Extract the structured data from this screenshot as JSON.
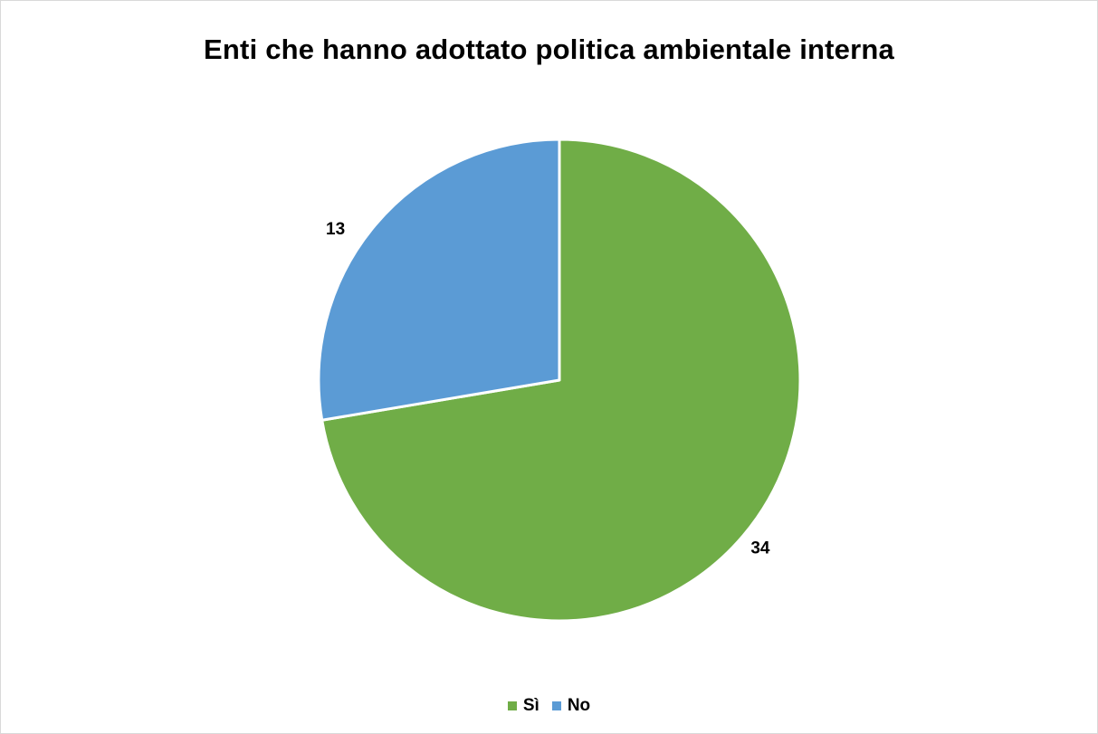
{
  "chart_data": {
    "type": "pie",
    "title": "Enti che hanno adottato politica ambientale interna",
    "categories": [
      "Sì",
      "No"
    ],
    "values": [
      34,
      13
    ],
    "data_labels": [
      "34",
      "13"
    ],
    "colors": [
      "#70ad47",
      "#5b9bd5"
    ],
    "legend": {
      "position": "bottom",
      "items": [
        "Sì",
        "No"
      ]
    }
  }
}
